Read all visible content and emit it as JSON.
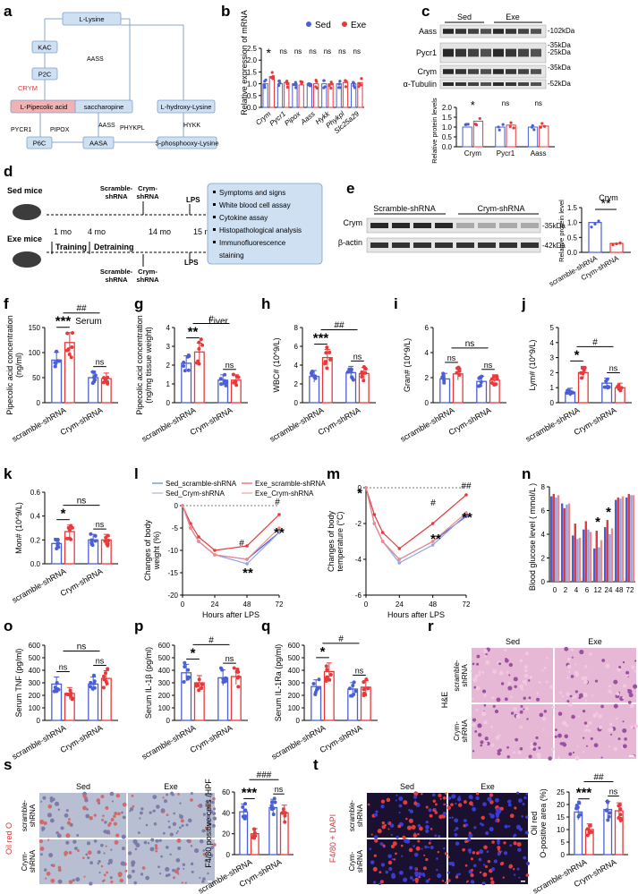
{
  "panel_letters": [
    "a",
    "b",
    "c",
    "d",
    "e",
    "f",
    "g",
    "h",
    "i",
    "j",
    "k",
    "l",
    "m",
    "n",
    "o",
    "p",
    "q",
    "r",
    "s",
    "t"
  ],
  "colors": {
    "sed": "#4a5fd6",
    "exe": "#e8383a",
    "lightblue": "#c6d6ef",
    "pink": "#f0b2b2",
    "box": "#cfe0f3"
  },
  "pathway": {
    "nodes": [
      "L-Lysine",
      "KAC",
      "P2C",
      "CRYM",
      "L-Pipecolic acid",
      "PYCR1",
      "PIPOX",
      "P6C",
      "AASS",
      "saccharopine",
      "AASS",
      "AASA",
      "PHYKPL",
      "L-hydroxy-Lysine",
      "HYKK",
      "5-phosphooxy-Lysine"
    ]
  },
  "legend": {
    "sed": "Sed",
    "exe": "Exe"
  },
  "western_c": {
    "groups": [
      "Sed",
      "Exe"
    ],
    "rows": [
      "Aass",
      "Pycr1",
      "Crym",
      "α-Tubulin"
    ],
    "kda": [
      "-102kDa",
      "-35kDa",
      "-25kDa",
      "-35kDa",
      "-52kDa"
    ],
    "ylabel": "Relative protein levels",
    "genes": [
      "Crym",
      "Pycr1",
      "Aass"
    ],
    "sig": [
      "*",
      "ns",
      "ns"
    ]
  },
  "schematic": {
    "sed": "Sed mice",
    "exe": "Exe mice",
    "time": [
      "1 mo",
      "4 mo",
      "14 mo",
      "15 mo"
    ],
    "phases": [
      "Training",
      "Detraining"
    ],
    "inj_top": "Scramble-\nshRNA",
    "inj_top2": "Crym-\nshRNA",
    "lps": "LPS",
    "assays": [
      "Symptoms and signs",
      "White blood cell assay",
      "Cytokine assay",
      "Histopathological analysis",
      "Immunofluorescence",
      "staining"
    ]
  },
  "western_e": {
    "groups": [
      "Scramble-shRNA",
      "Crym-shRNA"
    ],
    "rows": [
      "Crym",
      "β-actin"
    ],
    "kda": [
      "-35kDa",
      "-42kDa"
    ],
    "title": "Crym",
    "ylabel": "Relative protein level",
    "sig": "**"
  },
  "xcats": [
    "scramble-shRNA",
    "Crym-shRNA"
  ],
  "image_panels": {
    "r": {
      "cols": [
        "Sed",
        "Exe"
      ],
      "rows": [
        "scramble-\nshRNA",
        "Crym-\nshRNA"
      ],
      "stain": "H&E"
    },
    "s": {
      "cols": [
        "Sed",
        "Exe"
      ],
      "rows": [
        "scramble-\nshRNA",
        "Crym-\nshRNA"
      ],
      "stain": "Oil red O"
    },
    "t": {
      "cols": [
        "Sed",
        "Exe"
      ],
      "rows": [
        "scramble-\nshRNA",
        "Crym-\nshRNA"
      ],
      "stain": "F4/80 + DAPI"
    }
  },
  "chart_data": [
    {
      "id": "b",
      "type": "bar",
      "title": "",
      "ylabel": "Relative expression of mRNA",
      "ylim": [
        0,
        2.5
      ],
      "yticks": [
        "0.0",
        "0.5",
        "1.0",
        "1.5",
        "2.0",
        "2.5"
      ],
      "categories": [
        "Crym",
        "Pycr1",
        "Pipox",
        "Aass",
        "Hykk",
        "Phykpl",
        "Slc25a29"
      ],
      "series": [
        {
          "name": "Sed",
          "values": [
            1.0,
            1.0,
            1.0,
            1.0,
            1.0,
            1.0,
            1.0
          ]
        },
        {
          "name": "Exe",
          "values": [
            1.3,
            1.05,
            0.95,
            1.0,
            1.0,
            1.05,
            1.05
          ]
        }
      ],
      "sig": [
        "*",
        "ns",
        "ns",
        "ns",
        "ns",
        "ns",
        "ns"
      ]
    },
    {
      "id": "c2",
      "type": "bar",
      "ylabel": "Relative protein levels",
      "ylim": [
        0,
        2
      ],
      "yticks": [
        "0.0",
        "0.5",
        "1.0",
        "1.5",
        "2.0"
      ],
      "categories": [
        "Crym",
        "Pycr1",
        "Aass"
      ],
      "series": [
        {
          "name": "Sed",
          "values": [
            1.0,
            1.0,
            1.0
          ]
        },
        {
          "name": "Exe",
          "values": [
            1.3,
            1.1,
            1.05
          ]
        }
      ],
      "sig": [
        "*",
        "ns",
        "ns"
      ]
    },
    {
      "id": "e2",
      "type": "bar",
      "title": "Crym",
      "ylabel": "Relative protein level",
      "ylim": [
        0,
        1.5
      ],
      "yticks": [
        "0.0",
        "0.5",
        "1.0",
        "1.5"
      ],
      "categories": [
        "scramble-shRNA",
        "Crym-shRNA"
      ],
      "values": [
        1.0,
        0.3
      ],
      "sig": "**"
    },
    {
      "id": "f",
      "type": "bar",
      "title": "Serum",
      "ylabel": "Pipecolic acid concentration (ng/ml)",
      "ylim": [
        0,
        150
      ],
      "yticks": [
        "0",
        "50",
        "100",
        "150"
      ],
      "categories": [
        "scramble-shRNA",
        "Crym-shRNA"
      ],
      "series": [
        {
          "name": "Sed",
          "values": [
            85,
            50
          ]
        },
        {
          "name": "Exe",
          "values": [
            120,
            48
          ]
        }
      ],
      "sig_pair": [
        "***",
        "ns"
      ],
      "sig_cross": "##"
    },
    {
      "id": "g",
      "type": "bar",
      "title": "Liver",
      "ylabel": "Pipecolic acid concentration (ng/mg tissue weight)",
      "ylim": [
        0,
        4
      ],
      "yticks": [
        "0",
        "1",
        "2",
        "3",
        "4"
      ],
      "categories": [
        "scramble-shRNA",
        "Crym-shRNA"
      ],
      "series": [
        {
          "name": "Sed",
          "values": [
            2.1,
            1.2
          ]
        },
        {
          "name": "Exe",
          "values": [
            2.7,
            1.2
          ]
        }
      ],
      "sig_pair": [
        "**",
        "ns"
      ],
      "sig_cross": "#"
    },
    {
      "id": "h",
      "type": "bar",
      "ylabel": "WBC# (10^9/L)",
      "ylim": [
        0,
        8
      ],
      "yticks": [
        "0",
        "2",
        "4",
        "6",
        "8"
      ],
      "categories": [
        "scramble-shRNA",
        "Crym-shRNA"
      ],
      "series": [
        {
          "name": "Sed",
          "values": [
            2.8,
            3.2
          ]
        },
        {
          "name": "Exe",
          "values": [
            4.8,
            3.1
          ]
        }
      ],
      "sig_pair": [
        "***",
        "ns"
      ],
      "sig_cross": "##"
    },
    {
      "id": "i",
      "type": "bar",
      "ylabel": "Gran# (10^9/L)",
      "ylim": [
        0,
        6
      ],
      "yticks": [
        "0",
        "2",
        "4",
        "6"
      ],
      "categories": [
        "scramble-shRNA",
        "Crym-shRNA"
      ],
      "series": [
        {
          "name": "Sed",
          "values": [
            1.9,
            1.7
          ]
        },
        {
          "name": "Exe",
          "values": [
            2.3,
            1.8
          ]
        }
      ],
      "sig_pair": [
        "ns",
        "ns"
      ],
      "sig_cross": "ns"
    },
    {
      "id": "j",
      "type": "bar",
      "ylabel": "Lym# (10^9/L)",
      "ylim": [
        0,
        5
      ],
      "yticks": [
        "0",
        "1",
        "2",
        "3",
        "4",
        "5"
      ],
      "categories": [
        "scramble-shRNA",
        "Crym-shRNA"
      ],
      "series": [
        {
          "name": "Sed",
          "values": [
            0.7,
            1.3
          ]
        },
        {
          "name": "Exe",
          "values": [
            2.0,
            1.0
          ]
        }
      ],
      "sig_pair": [
        "*",
        "ns"
      ],
      "sig_cross": "#"
    },
    {
      "id": "k",
      "type": "bar",
      "ylabel": "Mon# (10^9/L)",
      "ylim": [
        0,
        0.6
      ],
      "yticks": [
        "0.0",
        "0.2",
        "0.4",
        "0.6"
      ],
      "categories": [
        "scramble-shRNA",
        "Crym-shRNA"
      ],
      "series": [
        {
          "name": "Sed",
          "values": [
            0.17,
            0.2
          ]
        },
        {
          "name": "Exe",
          "values": [
            0.27,
            0.2
          ]
        }
      ],
      "sig_pair": [
        "*",
        "ns"
      ],
      "sig_cross": "ns"
    },
    {
      "id": "l",
      "type": "line",
      "xlabel": "Hours after LPS",
      "ylabel": "Changes of body weight (%)",
      "x": [
        0,
        6,
        12,
        24,
        48,
        72
      ],
      "xticks": [
        "0",
        "24",
        "48",
        "72"
      ],
      "ylim": [
        -20,
        0
      ],
      "yticks": [
        "-20",
        "-15",
        "-10",
        "-5",
        "0"
      ],
      "series": [
        {
          "name": "Sed_scramble-shRNA",
          "values": [
            0,
            -5,
            -8,
            -11,
            -12,
            -6
          ]
        },
        {
          "name": "Exe_scramble-shRNA",
          "values": [
            0,
            -4,
            -7,
            -10,
            -9,
            -2
          ]
        },
        {
          "name": "Sed_Crym-shRNA",
          "values": [
            0,
            -5,
            -8,
            -11,
            -13,
            -6
          ]
        },
        {
          "name": "Exe_Crym-shRNA",
          "values": [
            0,
            -5,
            -8,
            -11,
            -12,
            -5
          ]
        }
      ],
      "annotations": [
        "#",
        "#",
        "**",
        "**"
      ]
    },
    {
      "id": "m",
      "type": "line",
      "xlabel": "Hours after LPS",
      "ylabel": "Changes of body temperature (°C)",
      "x": [
        0,
        6,
        12,
        24,
        48,
        72
      ],
      "xticks": [
        "0",
        "24",
        "48",
        "72"
      ],
      "ylim": [
        -6,
        0
      ],
      "yticks": [
        "-6",
        "-4",
        "-2",
        "0"
      ],
      "series": [
        {
          "name": "Sed_scramble-shRNA",
          "values": [
            0,
            -2,
            -3,
            -4,
            -3,
            -1.6
          ]
        },
        {
          "name": "Exe_scramble-shRNA",
          "values": [
            0,
            -1.5,
            -2.5,
            -3.4,
            -2,
            -0.4
          ]
        },
        {
          "name": "Sed_Crym-shRNA",
          "values": [
            0,
            -2,
            -3,
            -4.2,
            -3.2,
            -1.5
          ]
        },
        {
          "name": "Exe_Crym-shRNA",
          "values": [
            0,
            -2,
            -3,
            -4,
            -3,
            -1.4
          ]
        }
      ],
      "annotations": [
        "*",
        "#",
        "##",
        "**",
        "**"
      ]
    },
    {
      "id": "n",
      "type": "bar",
      "ylabel": "Blood glucose level ( mmol/L )",
      "ylim": [
        0,
        8
      ],
      "yticks": [
        "0",
        "2",
        "4",
        "6",
        "8"
      ],
      "categories": [
        "0",
        "2",
        "4",
        "6",
        "12",
        "24",
        "48",
        "72"
      ],
      "series": [
        {
          "name": "Sed_scramble-shRNA",
          "values": [
            7.2,
            6.6,
            3.9,
            4.4,
            2.8,
            4.6,
            6.9,
            7.1
          ]
        },
        {
          "name": "Exe_scramble-shRNA",
          "values": [
            7.4,
            6.2,
            4.9,
            5.1,
            4.3,
            5.2,
            7.1,
            7.4
          ]
        },
        {
          "name": "Sed_Crym-shRNA",
          "values": [
            7.1,
            6.5,
            3.6,
            4.4,
            2.9,
            4.0,
            7.0,
            7.3
          ]
        },
        {
          "name": "Exe_Crym-shRNA",
          "values": [
            7.3,
            6.6,
            3.7,
            4.2,
            3.5,
            4.5,
            7.2,
            7.3
          ]
        }
      ],
      "annotations": [
        "*",
        "*"
      ]
    },
    {
      "id": "o",
      "type": "bar",
      "ylabel": "Serum TNF (pg/ml)",
      "ylim": [
        0,
        600
      ],
      "yticks": [
        "0",
        "100",
        "200",
        "300",
        "400",
        "500",
        "600"
      ],
      "categories": [
        "scramble-shRNA",
        "Crym-shRNA"
      ],
      "series": [
        {
          "name": "Sed",
          "values": [
            290,
            290
          ]
        },
        {
          "name": "Exe",
          "values": [
            215,
            335
          ]
        }
      ],
      "sig_pair": [
        "ns",
        "ns"
      ],
      "sig_cross": "ns"
    },
    {
      "id": "p",
      "type": "bar",
      "ylabel": "Serum IL-1β (pg/ml)",
      "ylim": [
        0,
        600
      ],
      "yticks": [
        "0",
        "100",
        "200",
        "300",
        "400",
        "500",
        "600"
      ],
      "categories": [
        "scramble-shRNA",
        "Crym-shRNA"
      ],
      "series": [
        {
          "name": "Sed",
          "values": [
            380,
            340
          ]
        },
        {
          "name": "Exe",
          "values": [
            300,
            350
          ]
        }
      ],
      "sig_pair": [
        "*",
        "ns"
      ],
      "sig_cross": "#"
    },
    {
      "id": "q",
      "type": "bar",
      "ylabel": "Serum IL-1Ra (pg/ml)",
      "ylim": [
        0,
        600
      ],
      "yticks": [
        "0",
        "100",
        "200",
        "300",
        "400",
        "500",
        "600"
      ],
      "categories": [
        "scramble-shRNA",
        "Crym-shRNA"
      ],
      "series": [
        {
          "name": "Sed",
          "values": [
            270,
            250
          ]
        },
        {
          "name": "Exe",
          "values": [
            390,
            265
          ]
        }
      ],
      "sig_pair": [
        "*",
        "ns"
      ],
      "sig_cross": "#"
    },
    {
      "id": "s2",
      "type": "bar",
      "ylabel": "F4/80 positive cells /HPF",
      "ylim": [
        0,
        60
      ],
      "yticks": [
        "0",
        "20",
        "40",
        "60"
      ],
      "categories": [
        "scramble-shRNA",
        "Crym-shRNA"
      ],
      "series": [
        {
          "name": "Sed",
          "values": [
            41,
            45
          ]
        },
        {
          "name": "Exe",
          "values": [
            20,
            40
          ]
        }
      ],
      "sig_pair": [
        "***",
        "ns"
      ],
      "sig_cross": "###"
    },
    {
      "id": "t2",
      "type": "bar",
      "ylabel": "Oil red O-positive area (%)",
      "ylim": [
        0,
        25
      ],
      "yticks": [
        "0",
        "5",
        "10",
        "15",
        "20",
        "25"
      ],
      "categories": [
        "scramble-shRNA",
        "Crym-shRNA"
      ],
      "series": [
        {
          "name": "Sed",
          "values": [
            17,
            18
          ]
        },
        {
          "name": "Exe",
          "values": [
            10,
            17.5
          ]
        }
      ],
      "sig_pair": [
        "***",
        "ns"
      ],
      "sig_cross": "##"
    }
  ]
}
